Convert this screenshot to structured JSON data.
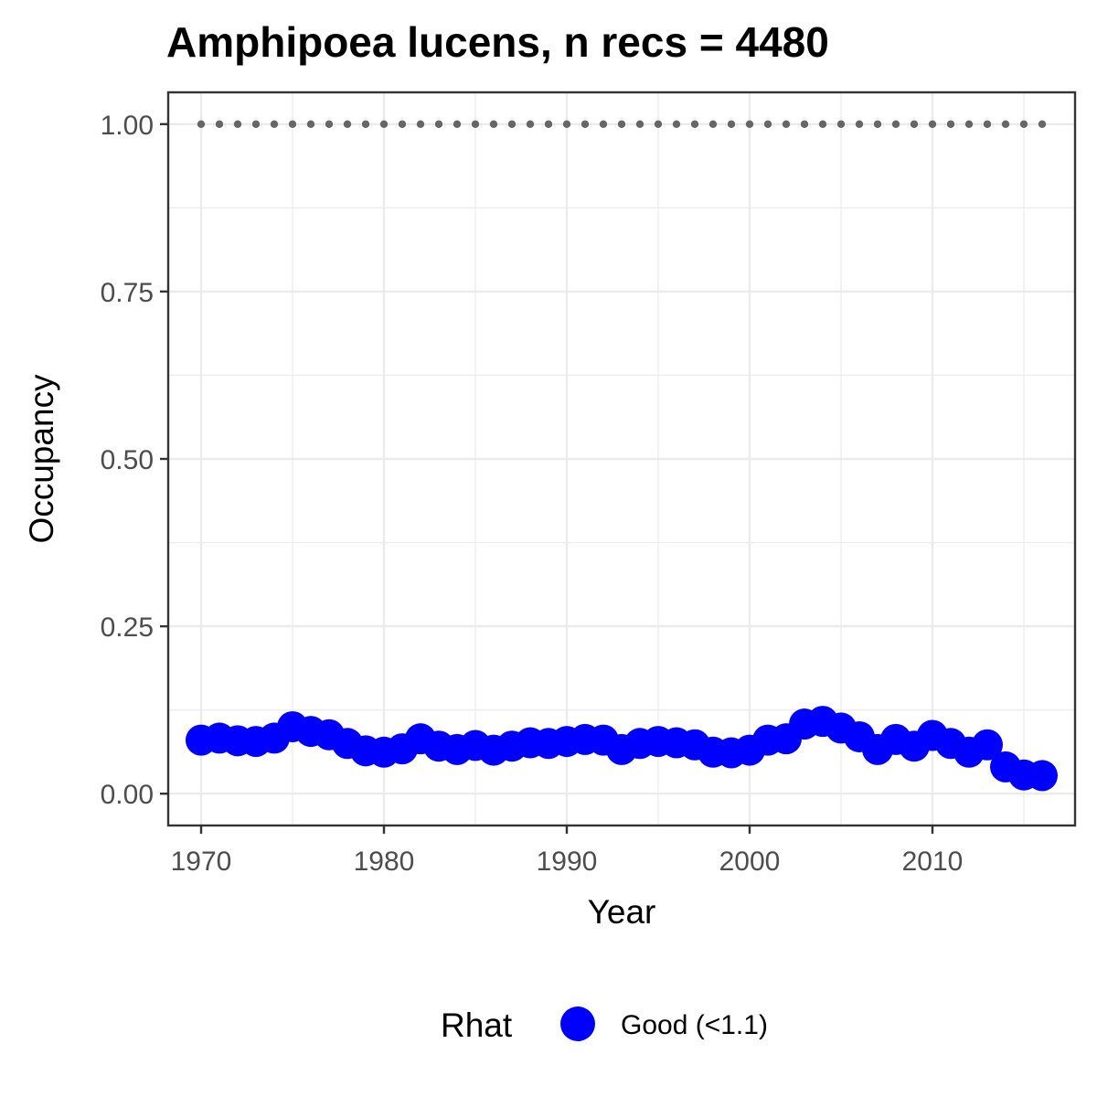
{
  "chart_data": {
    "type": "scatter",
    "title": "Amphipoea lucens, n recs = 4480",
    "xlabel": "Year",
    "ylabel": "Occupancy",
    "xlim": [
      1968.2,
      2017.8
    ],
    "ylim": [
      -0.0475,
      1.0475
    ],
    "x_ticks": [
      1970,
      1980,
      1990,
      2000,
      2010
    ],
    "x_tick_labels": [
      "1970",
      "1980",
      "1990",
      "2000",
      "2010"
    ],
    "y_ticks": [
      0.0,
      0.25,
      0.5,
      0.75,
      1.0
    ],
    "y_tick_labels": [
      "0.00",
      "0.25",
      "0.50",
      "0.75",
      "1.00"
    ],
    "grid": true,
    "legend": {
      "title": "Rhat",
      "placement": "bottom",
      "entries": [
        {
          "label": "Good (<1.1)",
          "color": "#0000ff"
        }
      ]
    },
    "colors": {
      "points": "#0000ff",
      "reference": "#666666",
      "panel_border": "#333333",
      "grid": "#ebebeb"
    },
    "series": [
      {
        "name": "Good (<1.1)",
        "x": [
          1970,
          1971,
          1972,
          1973,
          1974,
          1975,
          1976,
          1977,
          1978,
          1979,
          1980,
          1981,
          1982,
          1983,
          1984,
          1985,
          1986,
          1987,
          1988,
          1989,
          1990,
          1991,
          1992,
          1993,
          1994,
          1995,
          1996,
          1997,
          1998,
          1999,
          2000,
          2001,
          2002,
          2003,
          2004,
          2005,
          2006,
          2007,
          2008,
          2009,
          2010,
          2011,
          2012,
          2013,
          2014,
          2015,
          2016
        ],
        "y": [
          0.08,
          0.083,
          0.079,
          0.078,
          0.083,
          0.1,
          0.093,
          0.088,
          0.075,
          0.064,
          0.062,
          0.067,
          0.082,
          0.071,
          0.066,
          0.072,
          0.065,
          0.071,
          0.076,
          0.075,
          0.078,
          0.081,
          0.08,
          0.066,
          0.075,
          0.078,
          0.076,
          0.073,
          0.062,
          0.061,
          0.065,
          0.08,
          0.082,
          0.104,
          0.108,
          0.098,
          0.085,
          0.066,
          0.081,
          0.071,
          0.087,
          0.075,
          0.062,
          0.073,
          0.04,
          0.028,
          0.027
        ]
      },
      {
        "name": "",
        "style": "dotted-reference",
        "x": [
          1970,
          1971,
          1972,
          1973,
          1974,
          1975,
          1976,
          1977,
          1978,
          1979,
          1980,
          1981,
          1982,
          1983,
          1984,
          1985,
          1986,
          1987,
          1988,
          1989,
          1990,
          1991,
          1992,
          1993,
          1994,
          1995,
          1996,
          1997,
          1998,
          1999,
          2000,
          2001,
          2002,
          2003,
          2004,
          2005,
          2006,
          2007,
          2008,
          2009,
          2010,
          2011,
          2012,
          2013,
          2014,
          2015,
          2016
        ],
        "y": [
          1,
          1,
          1,
          1,
          1,
          1,
          1,
          1,
          1,
          1,
          1,
          1,
          1,
          1,
          1,
          1,
          1,
          1,
          1,
          1,
          1,
          1,
          1,
          1,
          1,
          1,
          1,
          1,
          1,
          1,
          1,
          1,
          1,
          1,
          1,
          1,
          1,
          1,
          1,
          1,
          1,
          1,
          1,
          1,
          1,
          1,
          1
        ]
      }
    ]
  }
}
